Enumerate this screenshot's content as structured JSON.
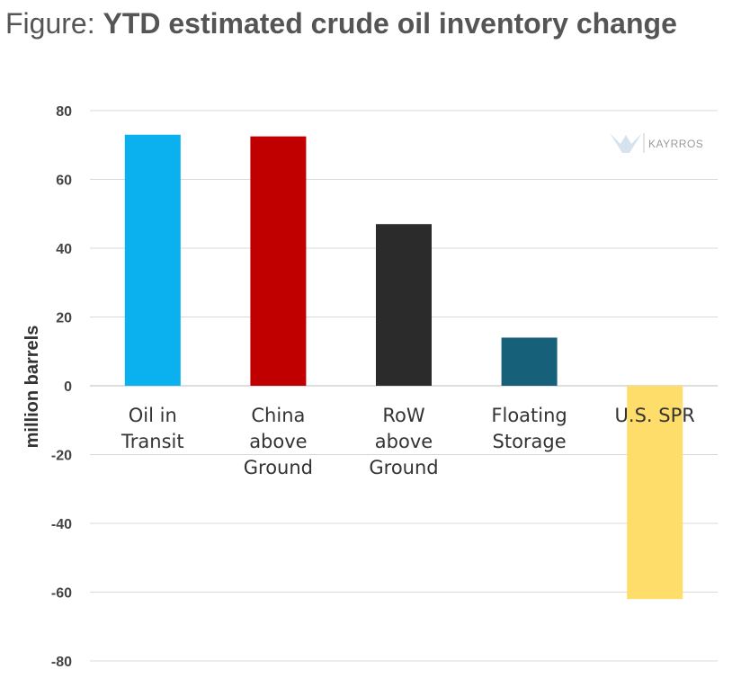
{
  "title": {
    "prefix": "Figure: ",
    "main": "YTD estimated crude oil inventory change"
  },
  "watermark": {
    "text": "KAYRROS"
  },
  "chart_data": {
    "type": "bar",
    "categories": [
      [
        "Oil in",
        "Transit"
      ],
      [
        "China",
        "above",
        "Ground"
      ],
      [
        "RoW",
        "above",
        "Ground"
      ],
      [
        "Floating",
        "Storage"
      ],
      [
        "U.S. SPR"
      ]
    ],
    "values": [
      73,
      72.5,
      47,
      14,
      -62
    ],
    "colors": [
      "#0bb0ee",
      "#c00000",
      "#2b2b2b",
      "#17607a",
      "#ffdd6b"
    ],
    "ylabel": "million barrels",
    "ylim": [
      -80,
      80
    ],
    "yticks": [
      80,
      60,
      40,
      20,
      0,
      -20,
      -40,
      -60,
      -80
    ],
    "grid": true
  }
}
